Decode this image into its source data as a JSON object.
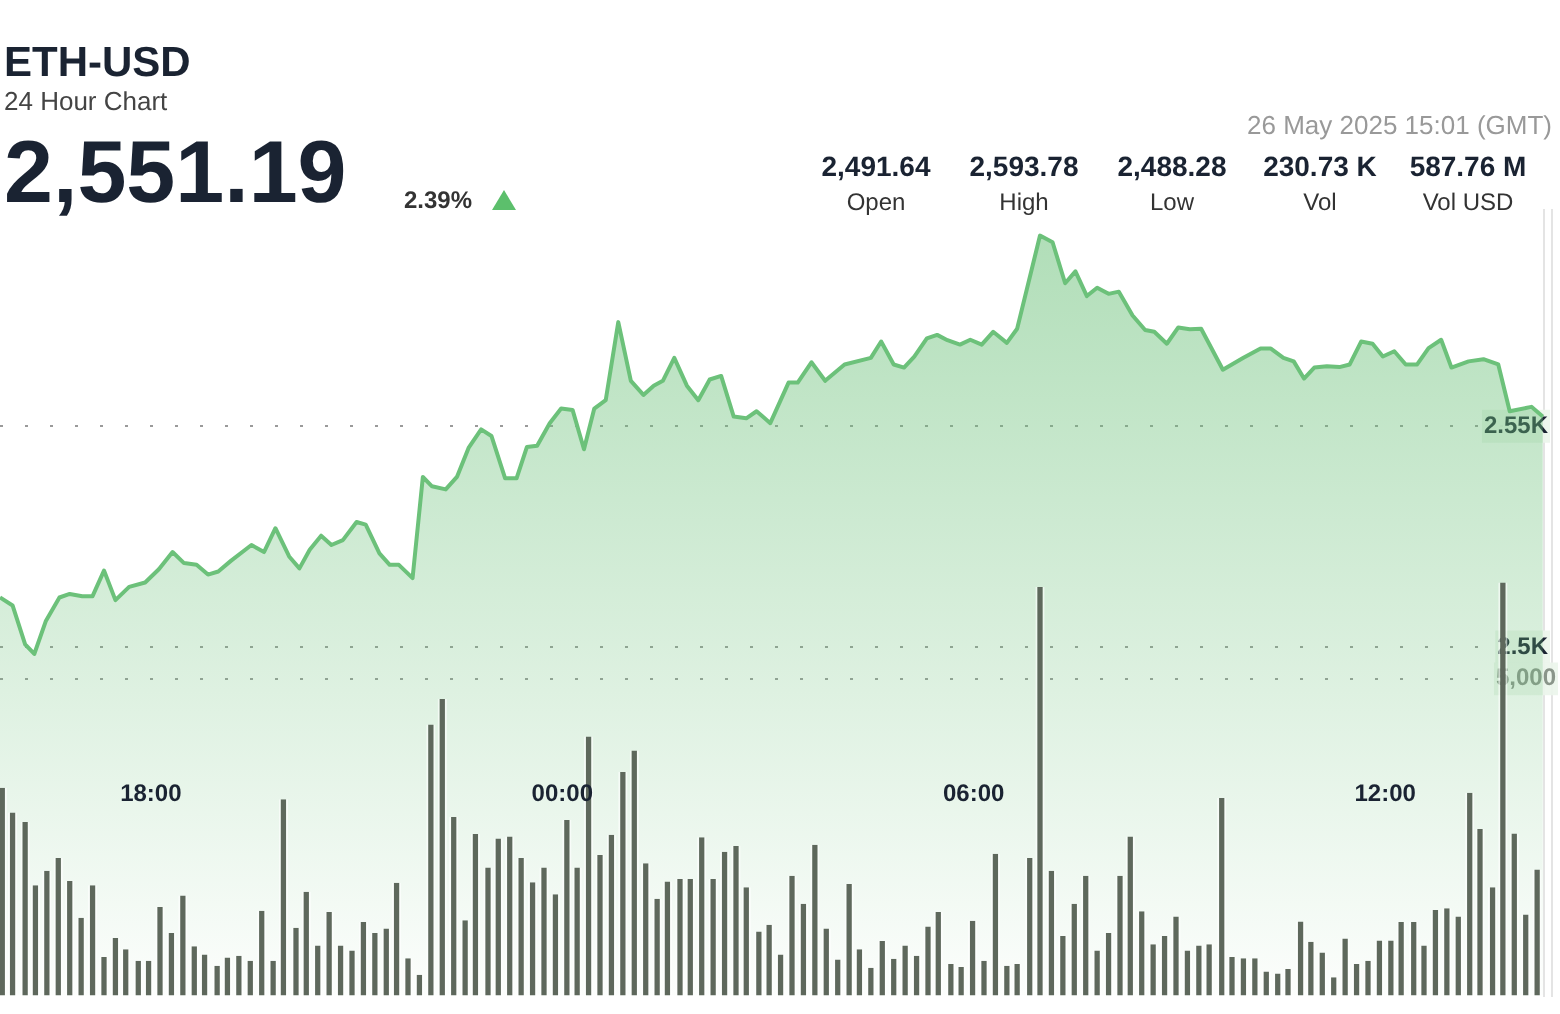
{
  "chart_data": {
    "type": "area",
    "title": "ETH-USD",
    "subtitle": "24 Hour Chart",
    "annotations": [
      "2,551.19",
      "2.39%",
      "26 May 2025 15:01 (GMT)",
      "2,491.64",
      "Open",
      "2,593.78",
      "High",
      "2,488.28",
      "Low",
      "230.73 K",
      "Vol",
      "587.76 M",
      "Vol USD"
    ],
    "xlim": [
      "2025-05-25T15:48",
      "2025-05-26T14:19"
    ],
    "xticks": [
      {
        "value": "2025-05-25T18:00",
        "label": "18:00"
      },
      {
        "value": "2025-05-26T00:00",
        "label": "00:00"
      },
      {
        "value": "2025-05-26T06:00",
        "label": "06:00"
      },
      {
        "value": "2025-05-26T12:00",
        "label": "12:00"
      }
    ],
    "ylim": [
      2421,
      2599
    ],
    "yticks": [
      {
        "value": 2500,
        "label": "2.5K"
      },
      {
        "value": 2550,
        "label": "2.55K"
      }
    ],
    "y2lim": [
      0,
      12400
    ],
    "y2ticks": [
      {
        "value": 5000,
        "label": "5,000"
      }
    ],
    "grid": "y",
    "marker": "none",
    "series": [
      {
        "color": "#6cc17a",
        "x": [
          "2025-05-25T15:48",
          "2025-05-25T15:59",
          "2025-05-25T16:10",
          "2025-05-25T16:18",
          "2025-05-25T16:28",
          "2025-05-25T16:40",
          "2025-05-25T16:49",
          "2025-05-25T17:00",
          "2025-05-25T17:09",
          "2025-05-25T17:19",
          "2025-05-25T17:29",
          "2025-05-25T17:41",
          "2025-05-25T17:55",
          "2025-05-25T18:07",
          "2025-05-25T18:19",
          "2025-05-25T18:29",
          "2025-05-25T18:40",
          "2025-05-25T18:50",
          "2025-05-25T18:59",
          "2025-05-25T19:10",
          "2025-05-25T19:28",
          "2025-05-25T19:39",
          "2025-05-25T19:49",
          "2025-05-25T20:01",
          "2025-05-25T20:10",
          "2025-05-25T20:19",
          "2025-05-25T20:29",
          "2025-05-25T20:38",
          "2025-05-25T20:48",
          "2025-05-25T21:00",
          "2025-05-25T21:08",
          "2025-05-25T21:20",
          "2025-05-25T21:29",
          "2025-05-25T21:37",
          "2025-05-25T21:49",
          "2025-05-25T21:58",
          "2025-05-25T22:06",
          "2025-05-25T22:18",
          "2025-05-25T22:28",
          "2025-05-25T22:38",
          "2025-05-25T22:49",
          "2025-05-25T22:58",
          "2025-05-25T23:10",
          "2025-05-25T23:20",
          "2025-05-25T23:29",
          "2025-05-25T23:38",
          "2025-05-25T23:49",
          "2025-05-25T23:59",
          "2025-05-26T00:09",
          "2025-05-26T00:19",
          "2025-05-26T00:28",
          "2025-05-26T00:38",
          "2025-05-26T00:49",
          "2025-05-26T01:00",
          "2025-05-26T01:11",
          "2025-05-26T01:20",
          "2025-05-26T01:28",
          "2025-05-26T01:38",
          "2025-05-26T01:49",
          "2025-05-26T01:59",
          "2025-05-26T02:09",
          "2025-05-26T02:19",
          "2025-05-26T02:30",
          "2025-05-26T02:41",
          "2025-05-26T02:50",
          "2025-05-26T03:02",
          "2025-05-26T03:18",
          "2025-05-26T03:26",
          "2025-05-26T03:38",
          "2025-05-26T03:50",
          "2025-05-26T04:07",
          "2025-05-26T04:30",
          "2025-05-26T04:39",
          "2025-05-26T04:50",
          "2025-05-26T04:59",
          "2025-05-26T05:08",
          "2025-05-26T05:19",
          "2025-05-26T05:28",
          "2025-05-26T05:37",
          "2025-05-26T05:48",
          "2025-05-26T05:57",
          "2025-05-26T06:07",
          "2025-05-26T06:17",
          "2025-05-26T06:29",
          "2025-05-26T06:38",
          "2025-05-26T06:58",
          "2025-05-26T07:09",
          "2025-05-26T07:20",
          "2025-05-26T07:29",
          "2025-05-26T07:39",
          "2025-05-26T07:48",
          "2025-05-26T07:58",
          "2025-05-26T08:07",
          "2025-05-26T08:19",
          "2025-05-26T08:30",
          "2025-05-26T08:38",
          "2025-05-26T08:49",
          "2025-05-26T08:59",
          "2025-05-26T09:09",
          "2025-05-26T09:19",
          "2025-05-26T09:38",
          "2025-05-26T09:56",
          "2025-05-26T10:11",
          "2025-05-26T10:20",
          "2025-05-26T10:31",
          "2025-05-26T10:40",
          "2025-05-26T10:49",
          "2025-05-26T10:58",
          "2025-05-26T11:09",
          "2025-05-26T11:20",
          "2025-05-26T11:29",
          "2025-05-26T11:39",
          "2025-05-26T11:49",
          "2025-05-26T11:58",
          "2025-05-26T12:08",
          "2025-05-26T12:18",
          "2025-05-26T12:28",
          "2025-05-26T12:38",
          "2025-05-26T12:49",
          "2025-05-26T12:58",
          "2025-05-26T13:13",
          "2025-05-26T13:26",
          "2025-05-26T13:39",
          "2025-05-26T13:49",
          "2025-05-26T14:08",
          "2025-05-26T14:18"
        ],
        "values": [
          2511.2,
          2509.4,
          2500.6,
          2498.4,
          2505.8,
          2511.2,
          2512.0,
          2511.5,
          2511.5,
          2517.3,
          2510.6,
          2513.6,
          2514.6,
          2517.6,
          2521.5,
          2519.0,
          2518.6,
          2516.4,
          2517.1,
          2519.5,
          2523.1,
          2521.5,
          2526.9,
          2520.5,
          2517.8,
          2522.0,
          2525.2,
          2523.1,
          2524.2,
          2528.3,
          2527.7,
          2521.2,
          2518.6,
          2518.6,
          2515.6,
          2538.5,
          2536.4,
          2535.7,
          2538.6,
          2545.1,
          2549.3,
          2547.8,
          2538.2,
          2538.2,
          2545.3,
          2545.6,
          2550.7,
          2554.0,
          2553.7,
          2544.8,
          2554.0,
          2555.9,
          2573.6,
          2560.3,
          2557.1,
          2559.2,
          2560.3,
          2565.5,
          2559.2,
          2555.9,
          2560.6,
          2561.4,
          2552.2,
          2551.8,
          2553.4,
          2550.7,
          2559.9,
          2559.9,
          2564.5,
          2560.3,
          2564.0,
          2565.5,
          2569.2,
          2564.0,
          2563.3,
          2565.8,
          2569.9,
          2570.7,
          2569.5,
          2568.5,
          2569.6,
          2568.5,
          2571.4,
          2568.9,
          2572.1,
          2593.2,
          2591.7,
          2582.4,
          2585.1,
          2579.5,
          2581.4,
          2580.0,
          2580.5,
          2575.1,
          2571.8,
          2571.4,
          2568.7,
          2572.4,
          2572.0,
          2572.1,
          2562.8,
          2565.5,
          2567.6,
          2567.6,
          2565.5,
          2564.7,
          2560.8,
          2563.3,
          2563.6,
          2563.4,
          2564.0,
          2569.2,
          2568.7,
          2565.8,
          2567.0,
          2564.0,
          2564.0,
          2567.7,
          2569.6,
          2563.3,
          2564.7,
          2565.2,
          2564.0,
          2553.4,
          2554.4,
          2552.2
        ]
      },
      {
        "type": "bar",
        "axis": "y2",
        "color": "#5e685c",
        "x": [
          "2025-05-25T15:50",
          "2025-05-25T15:59",
          "2025-05-25T16:10",
          "2025-05-25T16:19",
          "2025-05-25T16:29",
          "2025-05-25T16:39",
          "2025-05-25T16:49",
          "2025-05-25T16:59",
          "2025-05-25T17:09",
          "2025-05-25T17:19",
          "2025-05-25T17:29",
          "2025-05-25T17:38",
          "2025-05-25T17:49",
          "2025-05-25T17:58",
          "2025-05-25T18:08",
          "2025-05-25T18:18",
          "2025-05-25T18:28",
          "2025-05-25T18:38",
          "2025-05-25T18:47",
          "2025-05-25T18:58",
          "2025-05-25T19:07",
          "2025-05-25T19:17",
          "2025-05-25T19:27",
          "2025-05-25T19:37",
          "2025-05-25T19:47",
          "2025-05-25T19:56",
          "2025-05-25T20:07",
          "2025-05-25T20:16",
          "2025-05-25T20:26",
          "2025-05-25T20:36",
          "2025-05-25T20:46",
          "2025-05-25T20:56",
          "2025-05-25T21:06",
          "2025-05-25T21:16",
          "2025-05-25T21:26",
          "2025-05-25T21:35",
          "2025-05-25T21:45",
          "2025-05-25T21:55",
          "2025-05-25T22:05",
          "2025-05-25T22:15",
          "2025-05-25T22:25",
          "2025-05-25T22:35",
          "2025-05-25T22:44",
          "2025-05-25T22:55",
          "2025-05-25T23:04",
          "2025-05-25T23:14",
          "2025-05-25T23:24",
          "2025-05-25T23:34",
          "2025-05-25T23:44",
          "2025-05-25T23:54",
          "2025-05-26T00:04",
          "2025-05-26T00:13",
          "2025-05-26T00:23",
          "2025-05-26T00:33",
          "2025-05-26T00:43",
          "2025-05-26T00:53",
          "2025-05-26T01:03",
          "2025-05-26T01:13",
          "2025-05-26T01:23",
          "2025-05-26T01:32",
          "2025-05-26T01:43",
          "2025-05-26T01:52",
          "2025-05-26T02:02",
          "2025-05-26T02:12",
          "2025-05-26T02:22",
          "2025-05-26T02:32",
          "2025-05-26T02:41",
          "2025-05-26T02:52",
          "2025-05-26T03:01",
          "2025-05-26T03:11",
          "2025-05-26T03:21",
          "2025-05-26T03:31",
          "2025-05-26T03:41",
          "2025-05-26T03:51",
          "2025-05-26T04:01",
          "2025-05-26T04:11",
          "2025-05-26T04:20",
          "2025-05-26T04:30",
          "2025-05-26T04:40",
          "2025-05-26T04:50",
          "2025-05-26T05:00",
          "2025-05-26T05:10",
          "2025-05-26T05:20",
          "2025-05-26T05:29",
          "2025-05-26T05:40",
          "2025-05-26T05:49",
          "2025-05-26T05:59",
          "2025-05-26T06:09",
          "2025-05-26T06:19",
          "2025-05-26T06:29",
          "2025-05-26T06:38",
          "2025-05-26T06:49",
          "2025-05-26T06:58",
          "2025-05-26T07:08",
          "2025-05-26T07:18",
          "2025-05-26T07:28",
          "2025-05-26T07:38",
          "2025-05-26T07:48",
          "2025-05-26T07:58",
          "2025-05-26T08:08",
          "2025-05-26T08:17",
          "2025-05-26T08:27",
          "2025-05-26T08:37",
          "2025-05-26T08:47",
          "2025-05-26T08:57",
          "2025-05-26T09:07",
          "2025-05-26T09:17",
          "2025-05-26T09:26",
          "2025-05-26T09:37",
          "2025-05-26T09:46",
          "2025-05-26T09:56",
          "2025-05-26T10:06",
          "2025-05-26T10:16",
          "2025-05-26T10:26",
          "2025-05-26T10:35",
          "2025-05-26T10:46",
          "2025-05-26T10:55",
          "2025-05-26T11:05",
          "2025-05-26T11:15",
          "2025-05-26T11:25",
          "2025-05-26T11:35",
          "2025-05-26T11:45",
          "2025-05-26T11:55",
          "2025-05-26T12:05",
          "2025-05-26T12:14",
          "2025-05-26T12:25",
          "2025-05-26T12:34",
          "2025-05-26T12:44",
          "2025-05-26T12:54",
          "2025-05-26T13:04",
          "2025-05-26T13:14",
          "2025-05-26T13:23",
          "2025-05-26T13:34",
          "2025-05-26T13:43",
          "2025-05-26T13:53",
          "2025-05-26T14:03",
          "2025-05-26T14:13"
        ],
        "values": [
          3280,
          2890,
          2740,
          1740,
          1970,
          2170,
          1810,
          1230,
          1740,
          610,
          910,
          730,
          550,
          550,
          1400,
          990,
          1580,
          780,
          650,
          470,
          600,
          630,
          550,
          1340,
          550,
          3100,
          1070,
          1640,
          790,
          1320,
          790,
          710,
          1160,
          990,
          1060,
          1780,
          590,
          330,
          4280,
          4680,
          2820,
          1190,
          2550,
          2020,
          2480,
          2510,
          2170,
          1790,
          2020,
          1600,
          2770,
          2020,
          4090,
          2220,
          2540,
          3530,
          3870,
          2090,
          1530,
          1800,
          1840,
          1840,
          2500,
          1840,
          2270,
          2360,
          1710,
          1010,
          1120,
          650,
          1890,
          1450,
          2380,
          1060,
          570,
          1760,
          730,
          440,
          860,
          580,
          790,
          630,
          1090,
          1320,
          500,
          450,
          1180,
          550,
          2240,
          470,
          500,
          2170,
          6450,
          1970,
          940,
          1450,
          1890,
          710,
          990,
          1890,
          2510,
          1330,
          810,
          940,
          1250,
          710,
          790,
          810,
          3120,
          610,
          590,
          590,
          380,
          350,
          420,
          1170,
          850,
          680,
          290,
          900,
          500,
          550,
          870,
          870,
          1160,
          1160,
          790,
          1350,
          1380,
          1250,
          3200,
          2630,
          1710,
          6520,
          2560,
          1280,
          1990
        ]
      }
    ]
  }
}
